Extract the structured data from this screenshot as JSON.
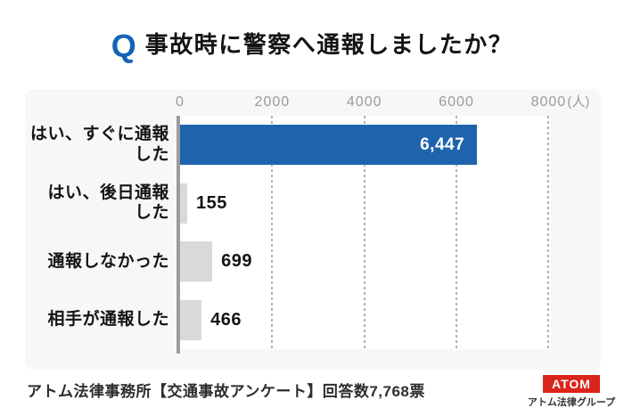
{
  "title": {
    "q": "Q",
    "text": "事故時に警察へ通報しましたか？"
  },
  "chart_data": {
    "type": "bar",
    "orientation": "horizontal",
    "title": "事故時に警察へ通報しましたか？",
    "categories": [
      "はい、すぐに通報\nした",
      "はい、後日通報\nした",
      "通報しなかった",
      "相手が通報した"
    ],
    "values": [
      6447,
      155,
      699,
      466
    ],
    "value_labels": [
      "6,447",
      "155",
      "699",
      "466"
    ],
    "x_ticks": [
      "0",
      "2000",
      "4000",
      "6000",
      "8000"
    ],
    "x_tick_values": [
      0,
      2000,
      4000,
      6000,
      8000
    ],
    "unit_label": "(人)",
    "xlim": [
      0,
      8050
    ],
    "grid": "vertical-dashed",
    "legend": "none",
    "colors": {
      "highlight_bar": "#1e64ac",
      "default_bar": "#d9d9d9",
      "axis": "#9c9c9c",
      "gridline": "#b3b3b3",
      "tick_text": "#9a9a9a",
      "panel_bg": "#f7f7f7"
    },
    "bar_colors": [
      "#1e64ac",
      "#d9d9d9",
      "#d9d9d9",
      "#d9d9d9"
    ]
  },
  "footer": {
    "caption": "アトム法律事務所【交通事故アンケート】回答数7,768票"
  },
  "logo": {
    "brand": "ATOM",
    "subtitle": "アトム法律グループ",
    "brand_bg": "#da251d"
  }
}
